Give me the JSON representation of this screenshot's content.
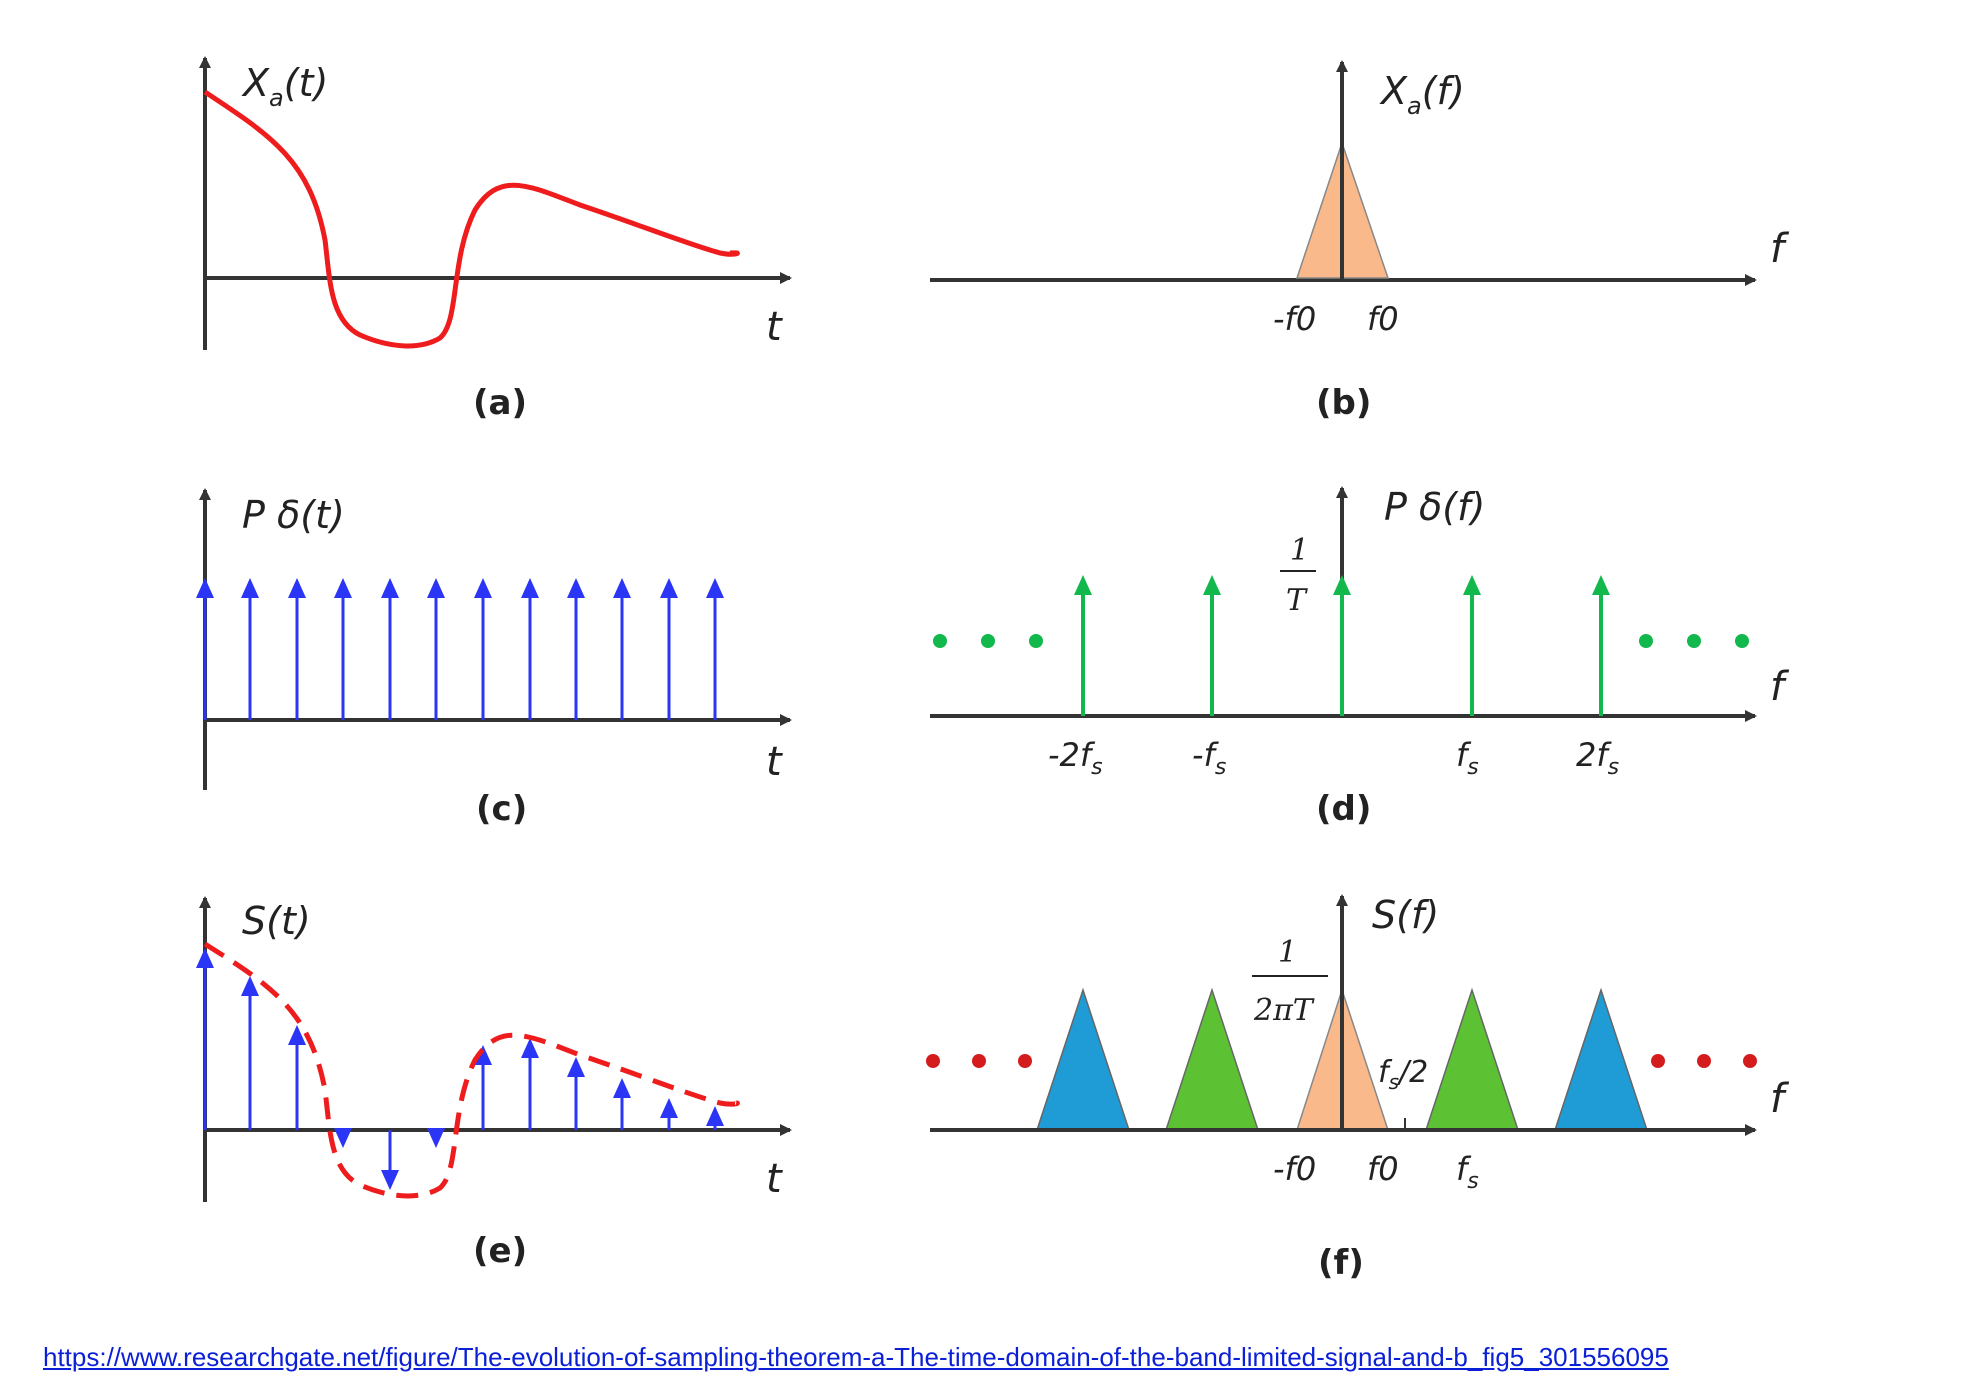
{
  "panels": {
    "a": {
      "caption": "(a)",
      "y_label_main": "X",
      "y_label_sub": "a",
      "y_label_rest": "(t)",
      "x_label": "t"
    },
    "b": {
      "caption": "(b)",
      "y_label_main": "X",
      "y_label_sub": "a",
      "y_label_rest": "(f)",
      "x_label": "f",
      "ticks": [
        "-f0",
        "f0"
      ]
    },
    "c": {
      "caption": "(c)",
      "y_label": "P δ(t)",
      "x_label": "t"
    },
    "d": {
      "caption": "(d)",
      "y_label": "P δ(f)",
      "x_label": "f",
      "height_num": "1",
      "height_den": "T",
      "ticks_main": [
        "-2f",
        "-f",
        "f",
        "2f"
      ],
      "tick_sub": "s"
    },
    "e": {
      "caption": "(e)",
      "y_label": "S(t)",
      "x_label": "t"
    },
    "f": {
      "caption": "(f)",
      "y_label": "S(f)",
      "x_label": "f",
      "height_num": "1",
      "height_den": "2πT",
      "half_label_main": "f",
      "half_label_sub": "s",
      "half_label_rest": "/2",
      "ticks": [
        "-f0",
        "f0"
      ],
      "fs_main": "f",
      "fs_sub": "s"
    }
  },
  "colors": {
    "signal": "#ee1c1c",
    "impulse_time": "#2b35f5",
    "impulse_freq": "#12b84b",
    "baseband": "#f9b98a",
    "green_replica": "#5dc233",
    "blue_replica": "#1f9bd6",
    "dots_green": "#12b84b",
    "dots_red": "#d41c1c",
    "axis": "#333333"
  },
  "source_url": "https://www.researchgate.net/figure/The-evolution-of-sampling-theorem-a-The-time-domain-of-the-band-limited-signal-and-b_fig5_301556095"
}
